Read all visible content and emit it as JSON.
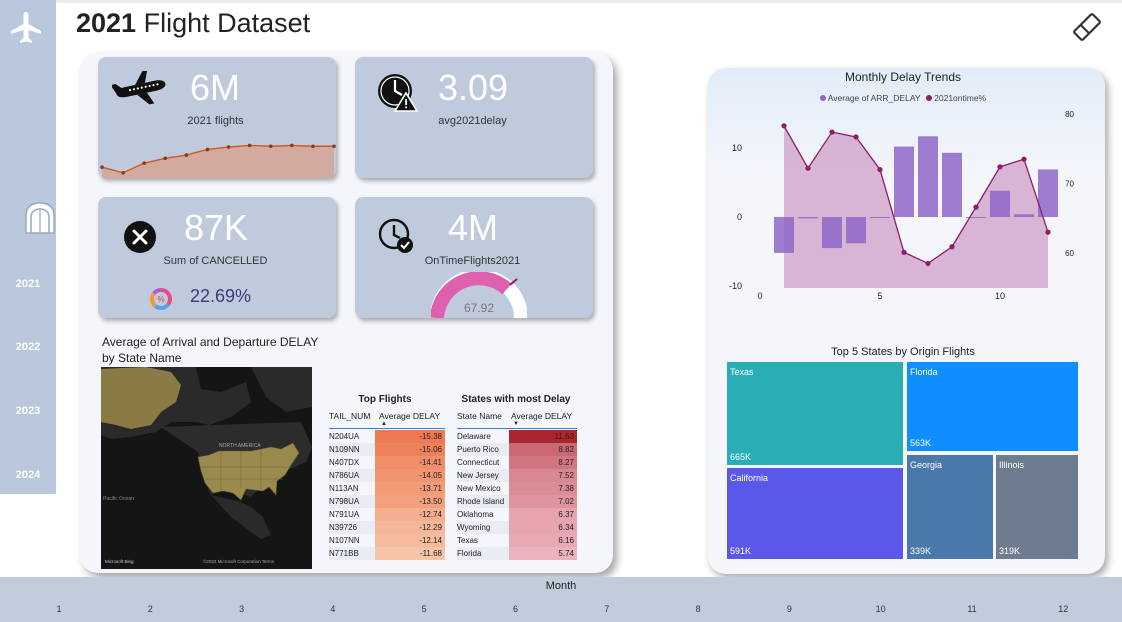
{
  "title": {
    "bold": "2021",
    "rest": " Flight Dataset"
  },
  "sidebar": {
    "years": [
      "2021",
      "2022",
      "2023",
      "2024"
    ]
  },
  "kpis": {
    "flights": {
      "value": "6M",
      "label": "2021 flights"
    },
    "delay": {
      "value": "3.09",
      "label": "avg2021delay"
    },
    "cancelled": {
      "value": "87K",
      "label": "Sum of CANCELLED",
      "pct": "22.69%"
    },
    "ontime": {
      "value": "4M",
      "label": "OnTimeFlights2021",
      "gauge": "67.92"
    }
  },
  "map": {
    "title": "Average of Arrival and Departure DELAY by State Name",
    "label_na": "NORTH AMERICA",
    "label_pacific": "Pacific Ocean",
    "label_bing": "Microsoft Bing",
    "label_copy": "©2023 Microsoft Corporation  Terms"
  },
  "top_flights": {
    "title": "Top Flights",
    "col1": "TAIL_NUM",
    "col2": "Average DELAY",
    "rows": [
      {
        "name": "N204UA",
        "val": "-15.38"
      },
      {
        "name": "N109NN",
        "val": "-15.06"
      },
      {
        "name": "N407DX",
        "val": "-14.41"
      },
      {
        "name": "N786UA",
        "val": "-14.05"
      },
      {
        "name": "N113AN",
        "val": "-13.71"
      },
      {
        "name": "N798UA",
        "val": "-13.50"
      },
      {
        "name": "N791UA",
        "val": "-12.74"
      },
      {
        "name": "N39726",
        "val": "-12.29"
      },
      {
        "name": "N107NN",
        "val": "-12.14"
      },
      {
        "name": "N771BB",
        "val": "-11.68"
      }
    ]
  },
  "states_delay": {
    "title": "States with most Delay",
    "col1": "State Name",
    "col2": "Average DELAY",
    "rows": [
      {
        "name": "Delaware",
        "val": "11.63"
      },
      {
        "name": "Puerto Rico",
        "val": "8.82"
      },
      {
        "name": "Connecticut",
        "val": "8.27"
      },
      {
        "name": "New Jersey",
        "val": "7.52"
      },
      {
        "name": "New Mexico",
        "val": "7.38"
      },
      {
        "name": "Rhode Island",
        "val": "7.02"
      },
      {
        "name": "Oklahoma",
        "val": "6.37"
      },
      {
        "name": "Wyoming",
        "val": "6.34"
      },
      {
        "name": "Texas",
        "val": "6.16"
      },
      {
        "name": "Florida",
        "val": "5.74"
      }
    ]
  },
  "chart_data": [
    {
      "type": "line",
      "title": "",
      "x": [
        1,
        2,
        3,
        4,
        5,
        6,
        7,
        8,
        9,
        10,
        11,
        12
      ],
      "series": [
        {
          "name": "",
          "values": [
            1.7,
            1.0,
            2.2,
            2.8,
            3.2,
            3.9,
            4.2,
            4.4,
            4.3,
            4.4,
            4.3,
            4.3
          ]
        }
      ]
    },
    {
      "type": "bar",
      "title": "Monthly Delay Trends",
      "x": [
        1,
        2,
        3,
        4,
        5,
        6,
        7,
        8,
        9,
        10,
        11,
        12
      ],
      "xlim": [
        0,
        12.5
      ],
      "xticks": [
        0,
        5,
        10
      ],
      "ylim": [
        -10,
        15
      ],
      "yticks": [
        -10,
        0,
        10
      ],
      "y2lim": [
        54,
        81
      ],
      "y2ticks": [
        60,
        70,
        80
      ],
      "series": [
        {
          "name": "Average of ARR_DELAY",
          "type": "bar",
          "axis": "left",
          "color": "#8e66c8",
          "values": [
            -5.2,
            -0.2,
            -4.5,
            -3.8,
            -0.1,
            10.2,
            11.7,
            9.3,
            -0.1,
            3.8,
            0.4,
            6.9
          ]
        },
        {
          "name": "2021ontime%",
          "type": "area",
          "axis": "right",
          "color": "#8b1d6b",
          "values": [
            78.3,
            72.2,
            77.4,
            76.7,
            72.0,
            60.1,
            58.5,
            60.9,
            66.6,
            72.4,
            73.5,
            63.0
          ]
        }
      ]
    },
    {
      "type": "treemap",
      "title": "Top 5 States by Origin Flights",
      "categories": [
        "Texas",
        "Florida",
        "California",
        "Georgia",
        "Illinois"
      ],
      "values": [
        665,
        563,
        591,
        339,
        319
      ],
      "labels": [
        "665K",
        "563K",
        "591K",
        "339K",
        "319K"
      ],
      "colors": [
        "#2aadb4",
        "#0f8fff",
        "#5b57e9",
        "#4a78a8",
        "#6d7c8f"
      ]
    }
  ],
  "slicer": {
    "title": "Month",
    "months": [
      "1",
      "2",
      "3",
      "4",
      "5",
      "6",
      "7",
      "8",
      "9",
      "10",
      "11",
      "12"
    ]
  }
}
